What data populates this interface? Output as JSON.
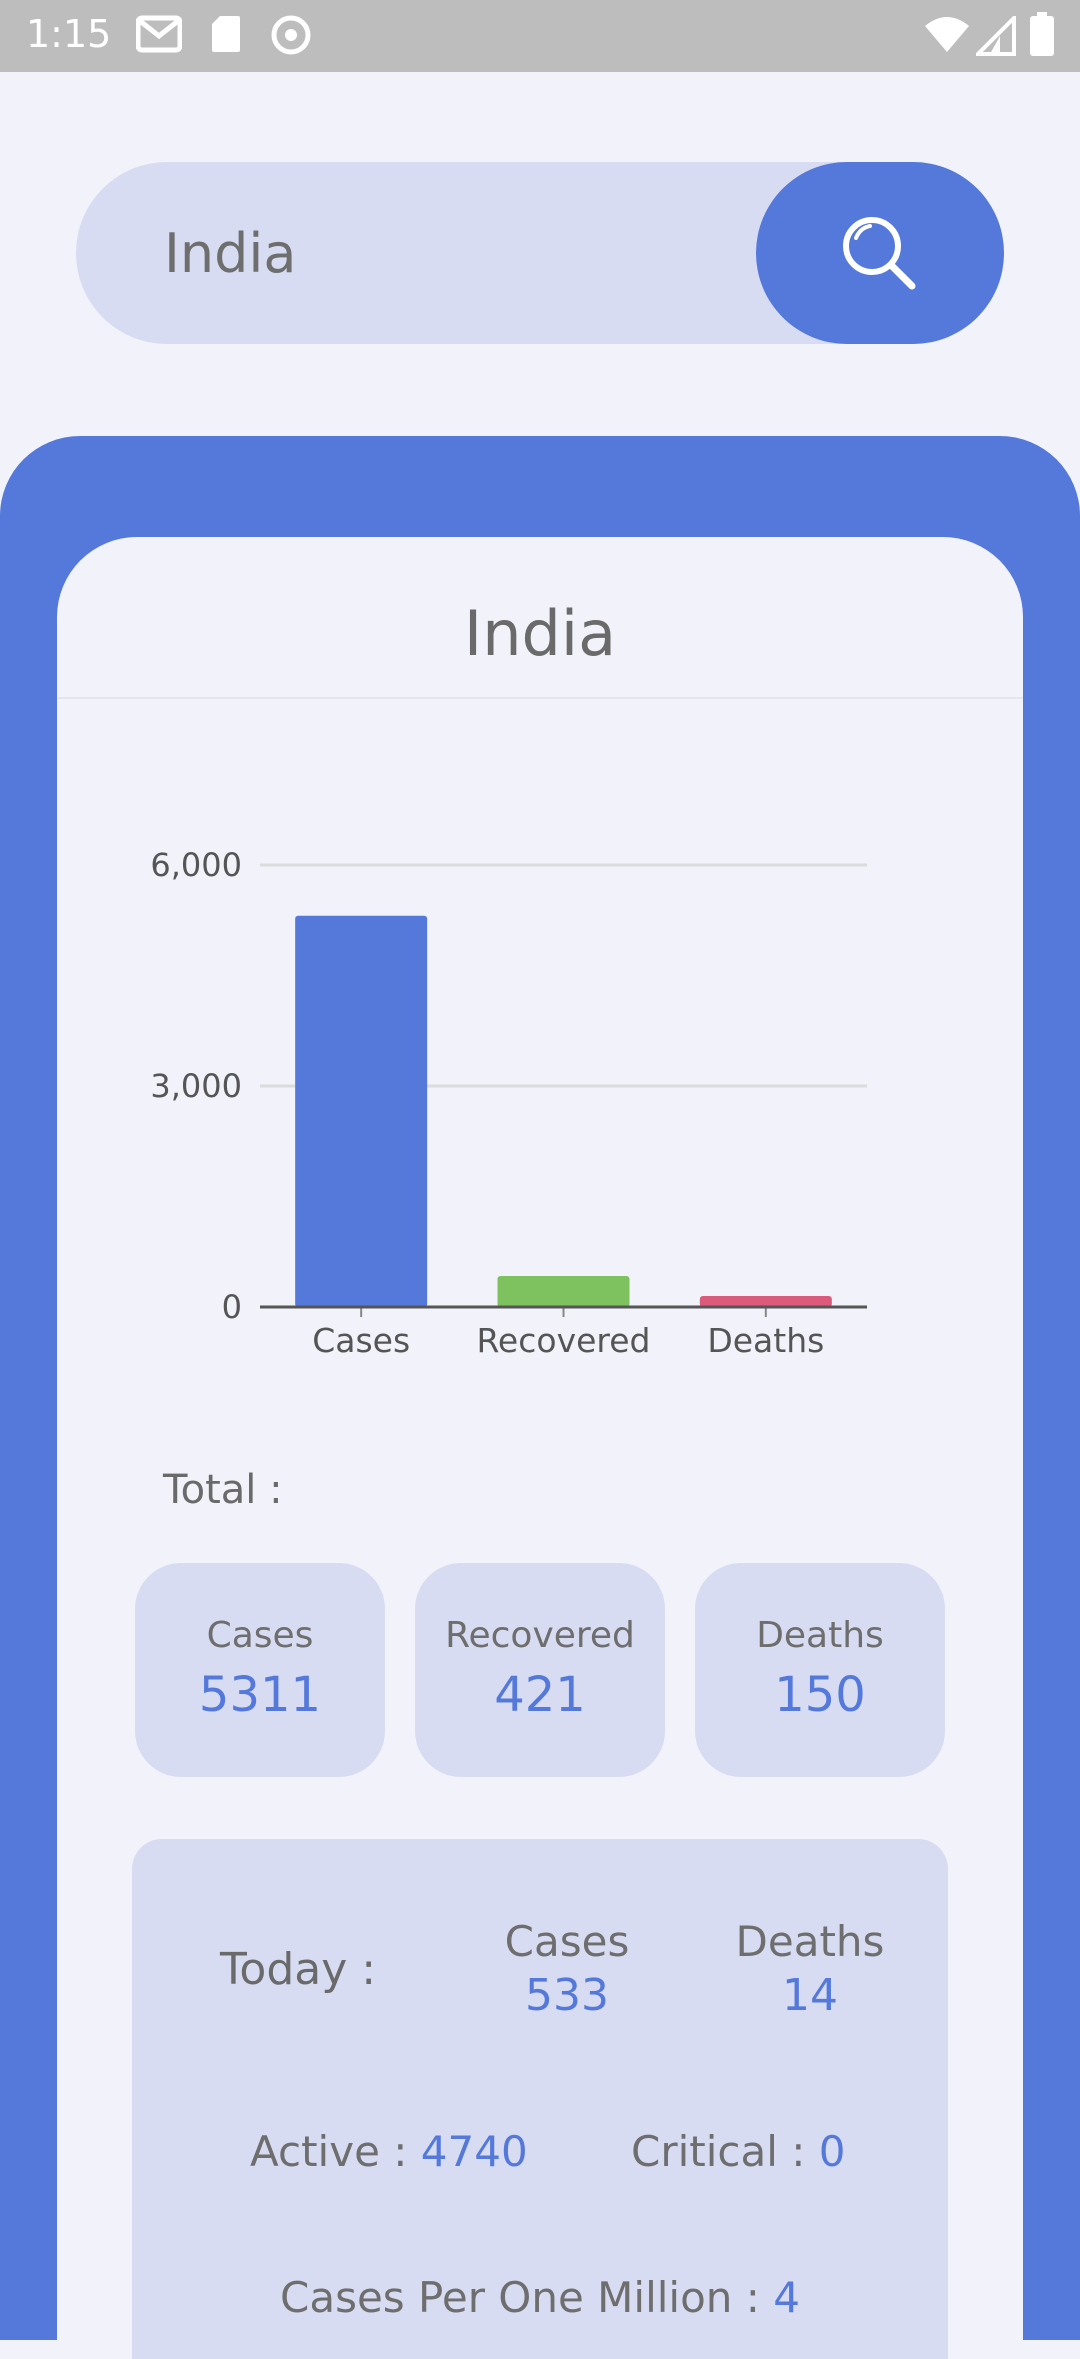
{
  "status_bar": {
    "time": "1:15",
    "left_icons": [
      "gmail-icon",
      "sd-card-icon",
      "sync-icon"
    ],
    "right_icons": [
      "wifi-icon",
      "cell-signal-icon",
      "battery-icon"
    ]
  },
  "search": {
    "value": "India",
    "button_icon": "search-icon"
  },
  "card": {
    "title": "India"
  },
  "chart_data": {
    "type": "bar",
    "categories": [
      "Cases",
      "Recovered",
      "Deaths"
    ],
    "values": [
      5311,
      421,
      150
    ],
    "colors": [
      "#5479db",
      "#7dc25f",
      "#dc5a7b"
    ],
    "yticks": [
      "6,000",
      "3,000",
      "0"
    ],
    "ylim": [
      0,
      6000
    ],
    "grid": true
  },
  "total": {
    "label": "Total :",
    "tiles": [
      {
        "label": "Cases",
        "value": "5311"
      },
      {
        "label": "Recovered",
        "value": "421"
      },
      {
        "label": "Deaths",
        "value": "150"
      }
    ]
  },
  "today": {
    "label": "Today :",
    "cases_label": "Cases",
    "cases_value": "533",
    "deaths_label": "Deaths",
    "deaths_value": "14",
    "active_label": "Active : ",
    "active_value": "4740",
    "critical_label": "Critical : ",
    "critical_value": "0",
    "per_million_label": "Cases Per One Million : ",
    "per_million_value": "4"
  },
  "colors": {
    "accent": "#5479db",
    "tile_bg": "#d7dcf3",
    "page_bg": "#f1f2fa"
  }
}
